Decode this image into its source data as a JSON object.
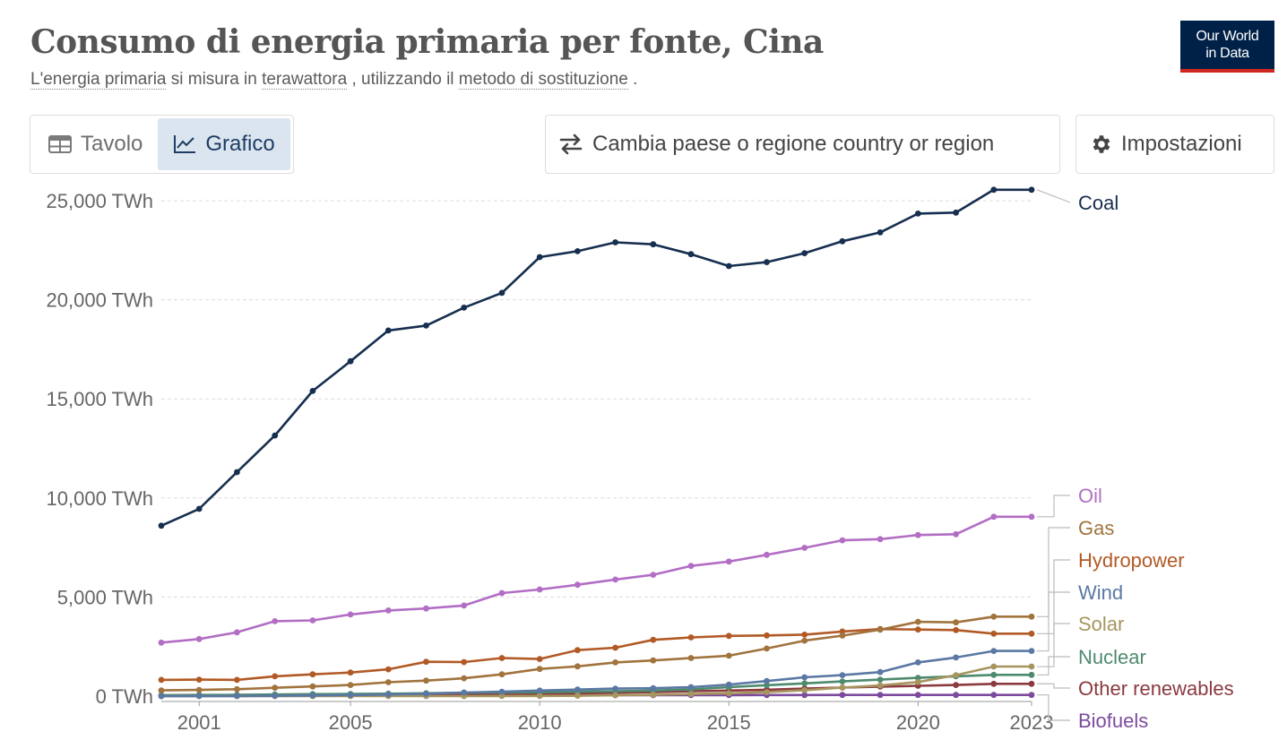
{
  "header": {
    "title": "Consumo di energia primaria per fonte, Cina",
    "subtitle_pre": "L'energia primaria",
    "subtitle_mid1": " si misura in ",
    "subtitle_unit": "terawattora",
    "subtitle_mid2": " , utilizzando il ",
    "subtitle_method": "metodo di sostituzione",
    "subtitle_end": " ."
  },
  "logo": {
    "line1": "Our World",
    "line2": "in Data"
  },
  "controls": {
    "tab_table": "Tavolo",
    "tab_chart": "Grafico",
    "change_country": "Cambia paese o regione country or region",
    "settings": "Impostazioni"
  },
  "colors": {
    "Coal": "#162e4f",
    "Oil": "#b26ec4",
    "Gas": "#a1733d",
    "Hydropower": "#b25a26",
    "Wind": "#5a78a3",
    "Solar": "#a7955f",
    "Nuclear": "#4e8a6e",
    "Other renewables": "#8b3a3f",
    "Biofuels": "#7c4b9d"
  },
  "chart_data": {
    "type": "line",
    "x": [
      2000,
      2001,
      2002,
      2003,
      2004,
      2005,
      2006,
      2007,
      2008,
      2009,
      2010,
      2011,
      2012,
      2013,
      2014,
      2015,
      2016,
      2017,
      2018,
      2019,
      2020,
      2021,
      2022,
      2023
    ],
    "x_ticks": [
      2001,
      2005,
      2010,
      2015,
      2020,
      2023
    ],
    "y_ticks": [
      0,
      5000,
      10000,
      15000,
      20000,
      25000
    ],
    "y_tick_labels": [
      "0 TWh",
      "5,000 TWh",
      "10,000 TWh",
      "15,000 TWh",
      "20,000 TWh",
      "25,000 TWh"
    ],
    "ylim": [
      0,
      25000
    ],
    "grid": true,
    "legend": "right-end-labels",
    "series": [
      {
        "name": "Coal",
        "values": [
          8600,
          9450,
          11300,
          13150,
          15400,
          16900,
          18450,
          18700,
          19600,
          20350,
          22150,
          22450,
          22900,
          22800,
          22300,
          21700,
          21900,
          22350,
          22950,
          23400,
          24350,
          24400,
          25550,
          25550
        ]
      },
      {
        "name": "Oil",
        "values": [
          2700,
          2880,
          3220,
          3780,
          3820,
          4120,
          4320,
          4420,
          4570,
          5200,
          5380,
          5620,
          5880,
          6120,
          6570,
          6790,
          7130,
          7480,
          7860,
          7920,
          8130,
          8170,
          9050,
          9050
        ]
      },
      {
        "name": "Gas",
        "values": [
          290,
          310,
          350,
          420,
          490,
          560,
          700,
          780,
          900,
          1100,
          1370,
          1500,
          1700,
          1800,
          1920,
          2040,
          2400,
          2800,
          3050,
          3350,
          3750,
          3720,
          4010,
          4010
        ]
      },
      {
        "name": "Hydropower",
        "values": [
          820,
          830,
          820,
          1000,
          1100,
          1190,
          1350,
          1730,
          1720,
          1920,
          1870,
          2320,
          2440,
          2840,
          2960,
          3040,
          3060,
          3100,
          3260,
          3380,
          3360,
          3330,
          3150,
          3150
        ]
      },
      {
        "name": "Wind",
        "values": [
          0,
          5,
          10,
          20,
          30,
          50,
          80,
          120,
          180,
          220,
          280,
          330,
          380,
          400,
          450,
          580,
          760,
          950,
          1060,
          1210,
          1700,
          1950,
          2280,
          2280
        ]
      },
      {
        "name": "Solar",
        "values": [
          0,
          0,
          0,
          0,
          0,
          0,
          0,
          0,
          0,
          5,
          10,
          20,
          40,
          70,
          110,
          140,
          200,
          300,
          430,
          540,
          710,
          1060,
          1490,
          1490
        ]
      },
      {
        "name": "Nuclear",
        "values": [
          50,
          60,
          65,
          80,
          100,
          110,
          120,
          145,
          170,
          180,
          190,
          220,
          250,
          280,
          340,
          450,
          550,
          640,
          740,
          830,
          920,
          1000,
          1070,
          1070
        ]
      },
      {
        "name": "Other renewables",
        "values": [
          20,
          25,
          30,
          40,
          45,
          50,
          60,
          70,
          80,
          90,
          110,
          140,
          170,
          200,
          250,
          280,
          320,
          380,
          430,
          480,
          520,
          560,
          620,
          620
        ]
      },
      {
        "name": "Biofuels",
        "values": [
          0,
          5,
          5,
          10,
          15,
          20,
          25,
          30,
          35,
          35,
          40,
          40,
          45,
          45,
          50,
          50,
          55,
          55,
          60,
          60,
          60,
          60,
          60,
          60
        ]
      }
    ]
  }
}
